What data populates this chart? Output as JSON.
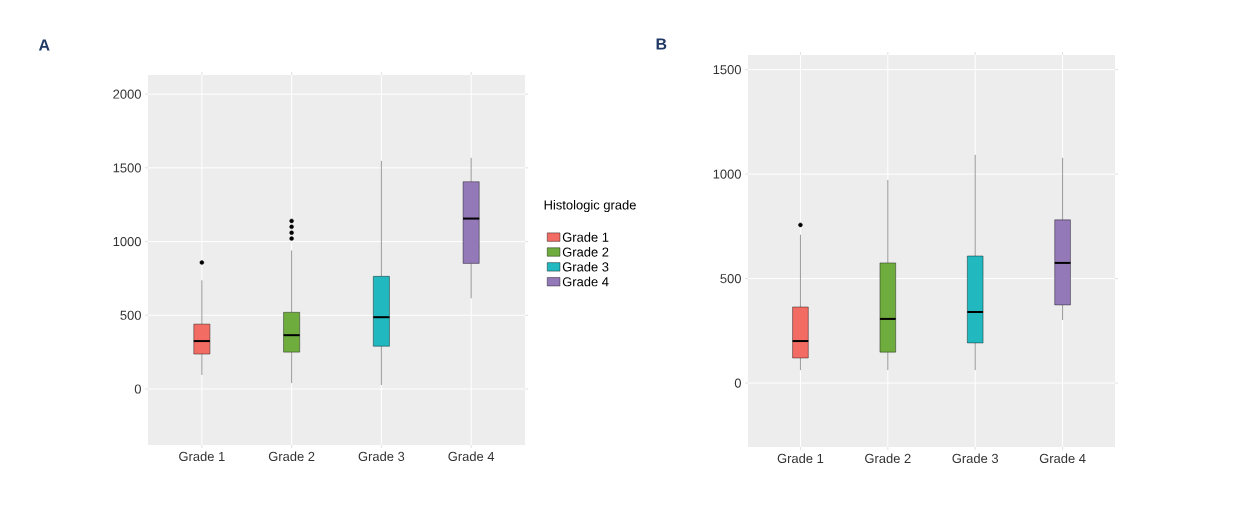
{
  "chart_data": [
    {
      "type": "box",
      "annotations": [
        "A"
      ],
      "legend_title": "Histologic grade",
      "legend": "right",
      "grid": true,
      "categories": [
        "Grade 1",
        "Grade 2",
        "Grade 3",
        "Grade 4"
      ],
      "series": [
        {
          "name": "Grade 1",
          "color": "#f26c64",
          "boxes": [
            {
              "low": 95,
              "q1": 237,
              "median": 325,
              "q3": 440,
              "high": 737,
              "outliers": [
                858
              ]
            },
            null,
            null,
            null
          ]
        },
        {
          "name": "Grade 2",
          "color": "#6fac3e",
          "boxes": [
            null,
            {
              "low": 40,
              "q1": 250,
              "median": 365,
              "q3": 520,
              "high": 940,
              "outliers": [
                1020,
                1060,
                1100,
                1140
              ]
            },
            null,
            null
          ]
        },
        {
          "name": "Grade 3",
          "color": "#21b8c0",
          "boxes": [
            null,
            null,
            {
              "low": 27,
              "q1": 290,
              "median": 487,
              "q3": 764,
              "high": 1548
            },
            null
          ]
        },
        {
          "name": "Grade 4",
          "color": "#9479b8",
          "boxes": [
            null,
            null,
            null,
            {
              "low": 615,
              "q1": 852,
              "median": 1156,
              "q3": 1406,
              "high": 1568
            }
          ]
        }
      ],
      "ylim": [
        -380,
        2130
      ],
      "yticks": [
        0,
        500,
        1000,
        1500,
        2000
      ]
    },
    {
      "type": "box",
      "annotations": [
        "B"
      ],
      "grid": true,
      "categories": [
        "Grade 1",
        "Grade 2",
        "Grade 3",
        "Grade 4"
      ],
      "series": [
        {
          "color": "#f26c64",
          "boxes": [
            {
              "low": 62,
              "q1": 120,
              "median": 201,
              "q3": 364,
              "high": 710,
              "outliers": [
                757
              ]
            },
            null,
            null,
            null
          ]
        },
        {
          "color": "#6fac3e",
          "boxes": [
            null,
            {
              "low": 62,
              "q1": 148,
              "median": 307,
              "q3": 575,
              "high": 972
            },
            null,
            null
          ]
        },
        {
          "color": "#21b8c0",
          "boxes": [
            null,
            null,
            {
              "low": 62,
              "q1": 192,
              "median": 340,
              "q3": 608,
              "high": 1092
            },
            null
          ]
        },
        {
          "color": "#9479b8",
          "boxes": [
            null,
            null,
            null,
            {
              "low": 302,
              "q1": 374,
              "median": 575,
              "q3": 781,
              "high": 1078
            }
          ]
        }
      ],
      "ylim": [
        -306,
        1570
      ],
      "yticks": [
        0,
        500,
        1000,
        1500
      ]
    }
  ]
}
